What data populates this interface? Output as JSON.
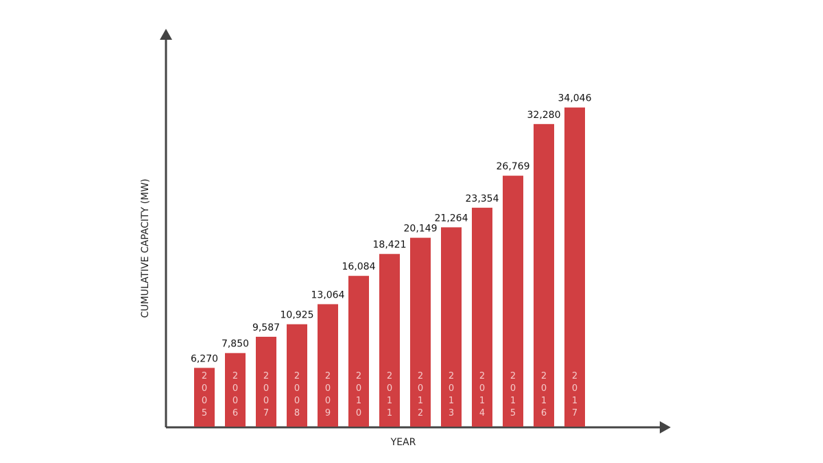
{
  "chart_data": {
    "type": "bar",
    "xlabel": "YEAR",
    "ylabel": "CUMULATIVE CAPACITY (MW)",
    "categories": [
      "2005",
      "2006",
      "2007",
      "2008",
      "2009",
      "2010",
      "2011",
      "2012",
      "2013",
      "2014",
      "2015",
      "2016",
      "2017"
    ],
    "values": [
      6270,
      7850,
      9587,
      10925,
      13064,
      16084,
      18421,
      20149,
      21264,
      23354,
      26769,
      32280,
      34046
    ],
    "value_labels": [
      "6,270",
      "7,850",
      "9,587",
      "10,925",
      "13,064",
      "16,084",
      "18,421",
      "20,149",
      "21,264",
      "23,354",
      "26,769",
      "32,280",
      "34,046"
    ],
    "color": "#d13f42",
    "ylim": [
      0,
      42000
    ]
  }
}
